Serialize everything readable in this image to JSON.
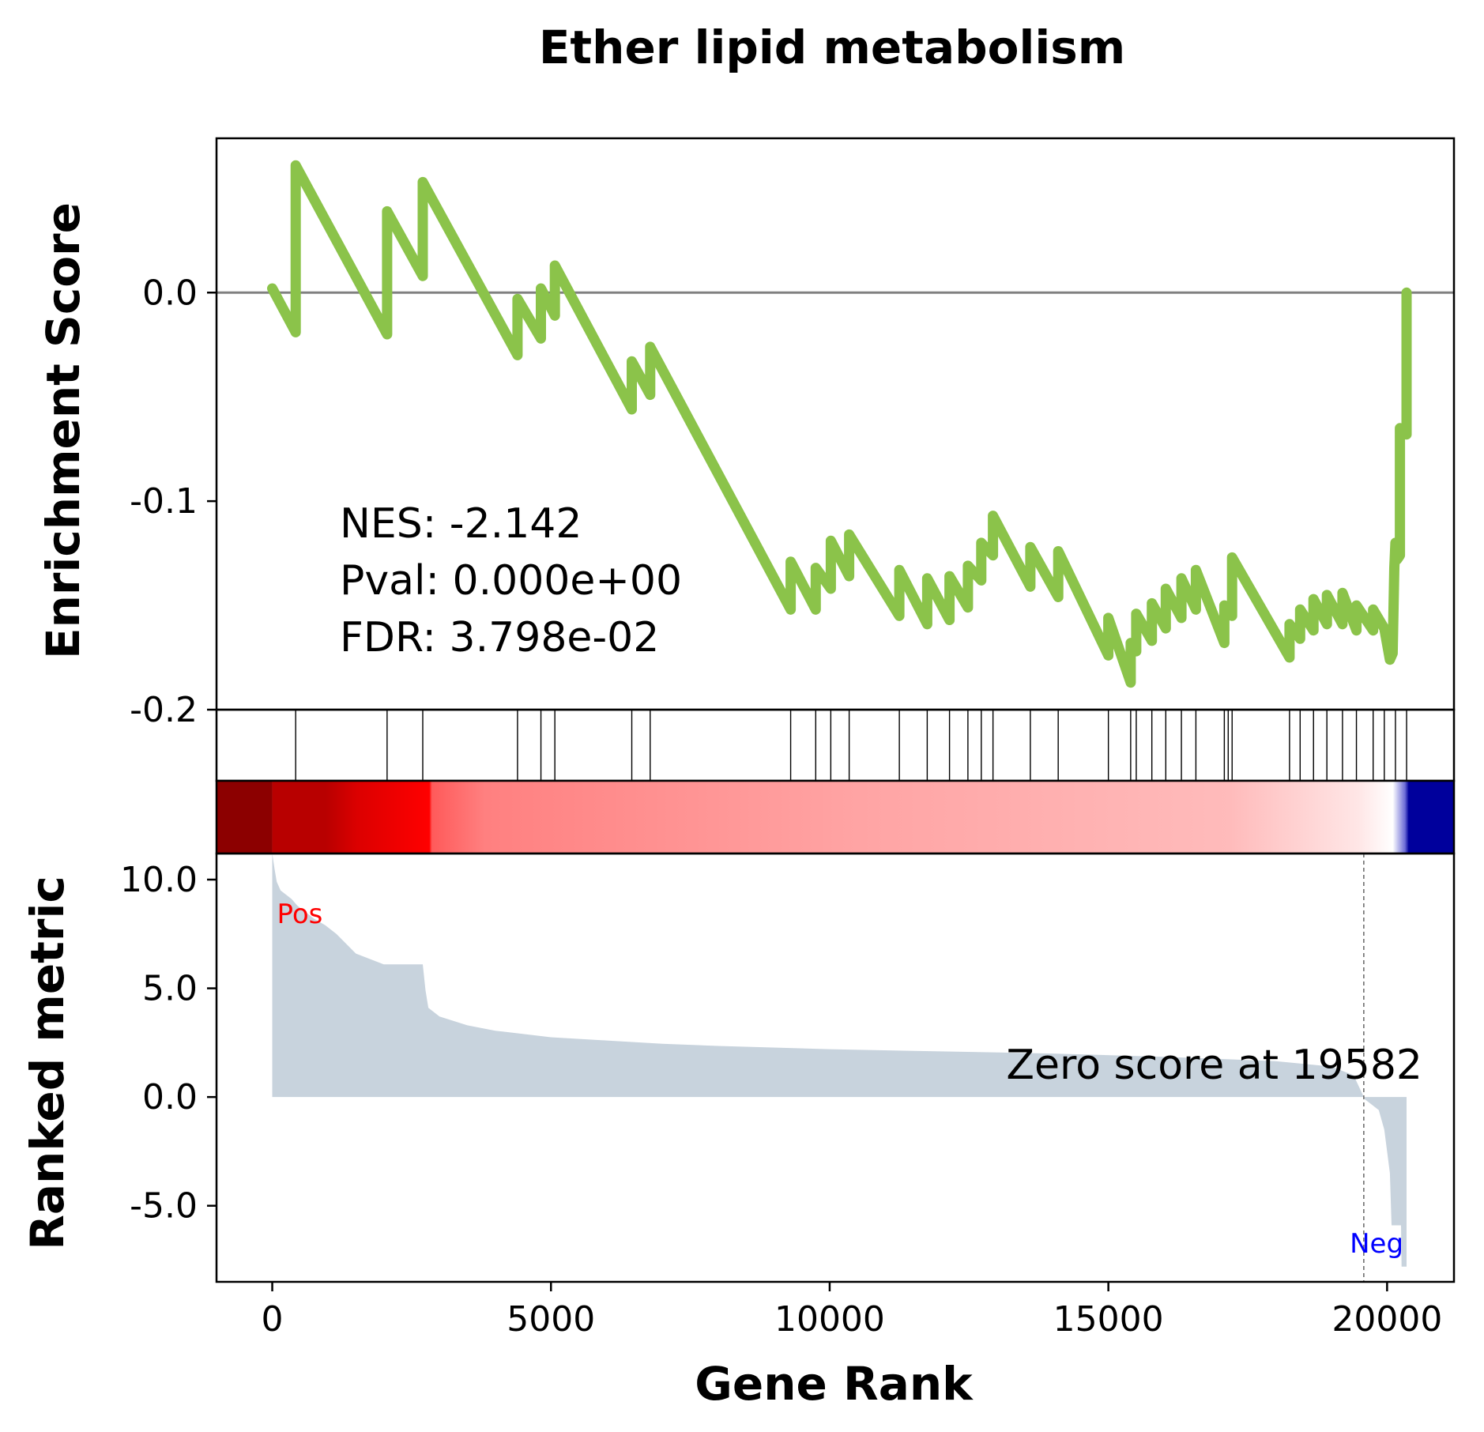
{
  "chart_data": {
    "type": "line",
    "title": "Ether lipid metabolism",
    "xlabel": "Gene Rank",
    "es_panel": {
      "ylabel": "Enrichment Score",
      "ylim": [
        -0.2,
        0.074
      ],
      "yticks": [
        0.0,
        -0.1,
        -0.2
      ],
      "ytick_labels": [
        "0.0",
        "-0.1",
        "-0.2"
      ],
      "line_color": "#8bc34a",
      "zero_line_color": "#808080",
      "points": [
        [
          0,
          0.002
        ],
        [
          420,
          -0.019
        ],
        [
          420,
          0.061
        ],
        [
          2060,
          -0.02
        ],
        [
          2060,
          0.039
        ],
        [
          2700,
          0.008
        ],
        [
          2700,
          0.053
        ],
        [
          4400,
          -0.03
        ],
        [
          4400,
          -0.003
        ],
        [
          4820,
          -0.022
        ],
        [
          4820,
          0.002
        ],
        [
          5070,
          -0.011
        ],
        [
          5070,
          0.013
        ],
        [
          6450,
          -0.056
        ],
        [
          6450,
          -0.033
        ],
        [
          6780,
          -0.049
        ],
        [
          6780,
          -0.026
        ],
        [
          9300,
          -0.152
        ],
        [
          9300,
          -0.129
        ],
        [
          9750,
          -0.152
        ],
        [
          9750,
          -0.132
        ],
        [
          10020,
          -0.142
        ],
        [
          10020,
          -0.119
        ],
        [
          10350,
          -0.136
        ],
        [
          10350,
          -0.116
        ],
        [
          11250,
          -0.155
        ],
        [
          11250,
          -0.133
        ],
        [
          11750,
          -0.159
        ],
        [
          11750,
          -0.137
        ],
        [
          12150,
          -0.157
        ],
        [
          12150,
          -0.136
        ],
        [
          12480,
          -0.151
        ],
        [
          12480,
          -0.131
        ],
        [
          12720,
          -0.138
        ],
        [
          12720,
          -0.12
        ],
        [
          12930,
          -0.126
        ],
        [
          12930,
          -0.107
        ],
        [
          13600,
          -0.141
        ],
        [
          13600,
          -0.122
        ],
        [
          14100,
          -0.146
        ],
        [
          14100,
          -0.124
        ],
        [
          15000,
          -0.174
        ],
        [
          15000,
          -0.156
        ],
        [
          15400,
          -0.187
        ],
        [
          15400,
          -0.168
        ],
        [
          15500,
          -0.172
        ],
        [
          15500,
          -0.154
        ],
        [
          15780,
          -0.167
        ],
        [
          15780,
          -0.149
        ],
        [
          16030,
          -0.161
        ],
        [
          16030,
          -0.142
        ],
        [
          16310,
          -0.156
        ],
        [
          16310,
          -0.137
        ],
        [
          16570,
          -0.152
        ],
        [
          16570,
          -0.133
        ],
        [
          17080,
          -0.168
        ],
        [
          17080,
          -0.15
        ],
        [
          17220,
          -0.155
        ],
        [
          17220,
          -0.127
        ],
        [
          18250,
          -0.175
        ],
        [
          18250,
          -0.159
        ],
        [
          18440,
          -0.166
        ],
        [
          18440,
          -0.152
        ],
        [
          18680,
          -0.162
        ],
        [
          18680,
          -0.147
        ],
        [
          18920,
          -0.159
        ],
        [
          18920,
          -0.145
        ],
        [
          19200,
          -0.159
        ],
        [
          19200,
          -0.144
        ],
        [
          19450,
          -0.162
        ],
        [
          19450,
          -0.15
        ],
        [
          19750,
          -0.162
        ],
        [
          19750,
          -0.152
        ],
        [
          19950,
          -0.161
        ],
        [
          20050,
          -0.176
        ],
        [
          20100,
          -0.173
        ],
        [
          20130,
          -0.132
        ],
        [
          20150,
          -0.12
        ],
        [
          20180,
          -0.128
        ],
        [
          20230,
          -0.126
        ],
        [
          20230,
          -0.065
        ],
        [
          20350,
          -0.068
        ],
        [
          20350,
          0.0
        ]
      ]
    },
    "hits": [
      420,
      2060,
      2700,
      4400,
      4820,
      5070,
      6450,
      6780,
      9300,
      9750,
      10020,
      10350,
      11250,
      11750,
      12150,
      12480,
      12720,
      12930,
      13600,
      14100,
      15000,
      15400,
      15500,
      15780,
      16030,
      16310,
      16570,
      17080,
      17150,
      17220,
      18250,
      18440,
      18680,
      18920,
      19200,
      19450,
      19750,
      19950,
      20150,
      20350
    ],
    "rank_panel": {
      "ylabel": "Ranked metric",
      "ylim": [
        -8.5,
        11.2
      ],
      "yticks": [
        10.0,
        5.0,
        0.0,
        -5.0
      ],
      "ytick_labels": [
        "10.0",
        "5.0",
        "0.0",
        "-5.0"
      ],
      "fill_color": "#c8d3dd",
      "zero_score_label": "Zero score at 19582",
      "zero_score_rank": 19582,
      "pos_label": "Pos",
      "neg_label": "Neg",
      "pos_color": "#ff0000",
      "neg_color": "#0000ff",
      "points": [
        [
          0,
          11.2
        ],
        [
          40,
          10.5
        ],
        [
          80,
          9.9
        ],
        [
          150,
          9.5
        ],
        [
          250,
          9.3
        ],
        [
          350,
          9.1
        ],
        [
          450,
          8.8
        ],
        [
          600,
          8.5
        ],
        [
          750,
          8.2
        ],
        [
          950,
          7.9
        ],
        [
          1150,
          7.5
        ],
        [
          1500,
          6.6
        ],
        [
          2000,
          6.1
        ],
        [
          2700,
          6.1
        ],
        [
          2750,
          4.9
        ],
        [
          2800,
          4.1
        ],
        [
          3000,
          3.7
        ],
        [
          3500,
          3.3
        ],
        [
          4000,
          3.05
        ],
        [
          5000,
          2.75
        ],
        [
          6000,
          2.6
        ],
        [
          7000,
          2.45
        ],
        [
          8000,
          2.35
        ],
        [
          10000,
          2.2
        ],
        [
          12000,
          2.1
        ],
        [
          14000,
          2.0
        ],
        [
          16000,
          1.85
        ],
        [
          18000,
          1.65
        ],
        [
          19000,
          1.4
        ],
        [
          19400,
          1.0
        ],
        [
          19582,
          0.0
        ],
        [
          19600,
          -0.1
        ],
        [
          19850,
          -0.6
        ],
        [
          19950,
          -1.5
        ],
        [
          20050,
          -3.5
        ],
        [
          20080,
          -5.9
        ],
        [
          20250,
          -5.9
        ],
        [
          20260,
          -7.8
        ],
        [
          20350,
          -7.8
        ]
      ]
    },
    "colorbar": {
      "colormap": "red-white-blue",
      "stops": [
        {
          "rank": 0,
          "color": "#b80000"
        },
        {
          "rank": 600,
          "color": "#dc0000"
        },
        {
          "rank": 1950,
          "color": "#ff0000"
        },
        {
          "rank": 2000,
          "color": "#ff5a5a"
        },
        {
          "rank": 3000,
          "color": "#ff8080"
        },
        {
          "rank": 10000,
          "color": "#ffa4a4"
        },
        {
          "rank": 17000,
          "color": "#ffbbbb"
        },
        {
          "rank": 19400,
          "color": "#ffe6e6"
        },
        {
          "rank": 20050,
          "color": "#ffffff"
        },
        {
          "rank": 20280,
          "color": "#6a6ad6"
        },
        {
          "rank": 20350,
          "color": "#00009c"
        },
        {
          "rank": 21200,
          "color": "#00009c"
        }
      ]
    },
    "stats": {
      "nes": "NES: -2.142",
      "pval": "Pval: 0.000e+00",
      "fdr": "FDR: 3.798e-02"
    },
    "xlim": [
      -1000,
      21200
    ],
    "xticks": [
      0,
      5000,
      10000,
      15000,
      20000
    ],
    "xtick_labels": [
      "0",
      "5000",
      "10000",
      "15000",
      "20000"
    ],
    "grid": false,
    "legend": "none"
  }
}
